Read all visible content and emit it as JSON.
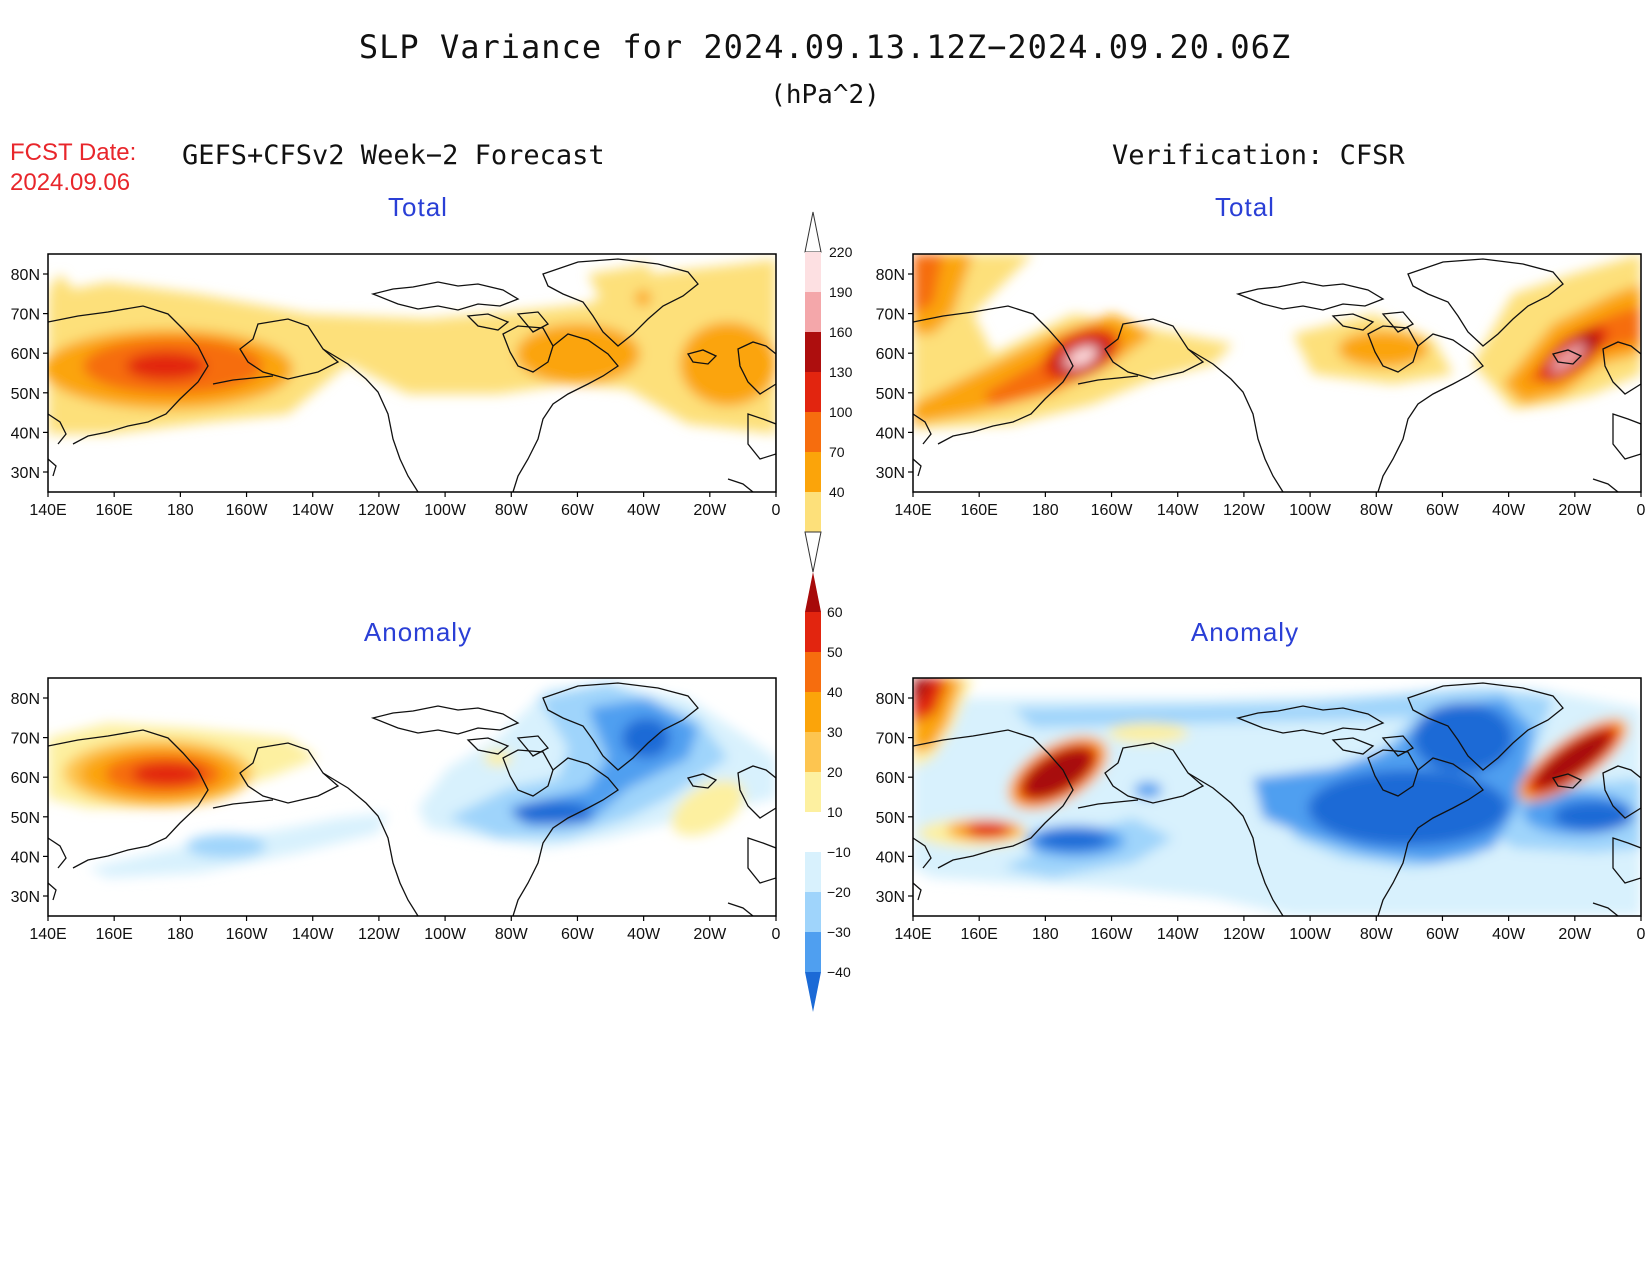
{
  "header": {
    "title": "SLP Variance for 2024.09.13.12Z−2024.09.20.06Z",
    "units": "(hPa^2)",
    "fcst_label": "FCST Date:",
    "fcst_date": "2024.09.06",
    "left_heading": "GEFS+CFSv2 Week−2 Forecast",
    "right_heading": "Verification: CFSR"
  },
  "panels": {
    "fcst_total": {
      "title": "Total"
    },
    "verif_total": {
      "title": "Total"
    },
    "fcst_anom": {
      "title": "Anomaly"
    },
    "verif_anom": {
      "title": "Anomaly"
    }
  },
  "axes": {
    "lat_labels": [
      "80N",
      "70N",
      "60N",
      "50N",
      "40N",
      "30N"
    ],
    "lon_labels": [
      "140E",
      "160E",
      "180",
      "160W",
      "140W",
      "120W",
      "100W",
      "80W",
      "60W",
      "40W",
      "20W",
      "0"
    ]
  },
  "colorbars": {
    "total": {
      "levels": [
        "40",
        "70",
        "100",
        "130",
        "160",
        "190",
        "220"
      ],
      "colors": [
        "#fde07a",
        "#fba40a",
        "#f66d0e",
        "#e2250f",
        "#ad0e0e",
        "#f4a7aa",
        "#fde0e2"
      ]
    },
    "anomaly": {
      "levels": [
        "60",
        "50",
        "40",
        "30",
        "20",
        "10",
        "−10",
        "−20",
        "−30",
        "−40"
      ],
      "colors": [
        "#a70a0a",
        "#e2250f",
        "#f66d0e",
        "#fba40a",
        "#fdc550",
        "#fdf0a0",
        "#ffffff",
        "#d8f1fd",
        "#9fd4fb",
        "#4f9ff0",
        "#1b6ad6"
      ]
    }
  },
  "colors": {
    "fcst_label": "#e8262b",
    "panel_title": "#2a3fd6"
  }
}
